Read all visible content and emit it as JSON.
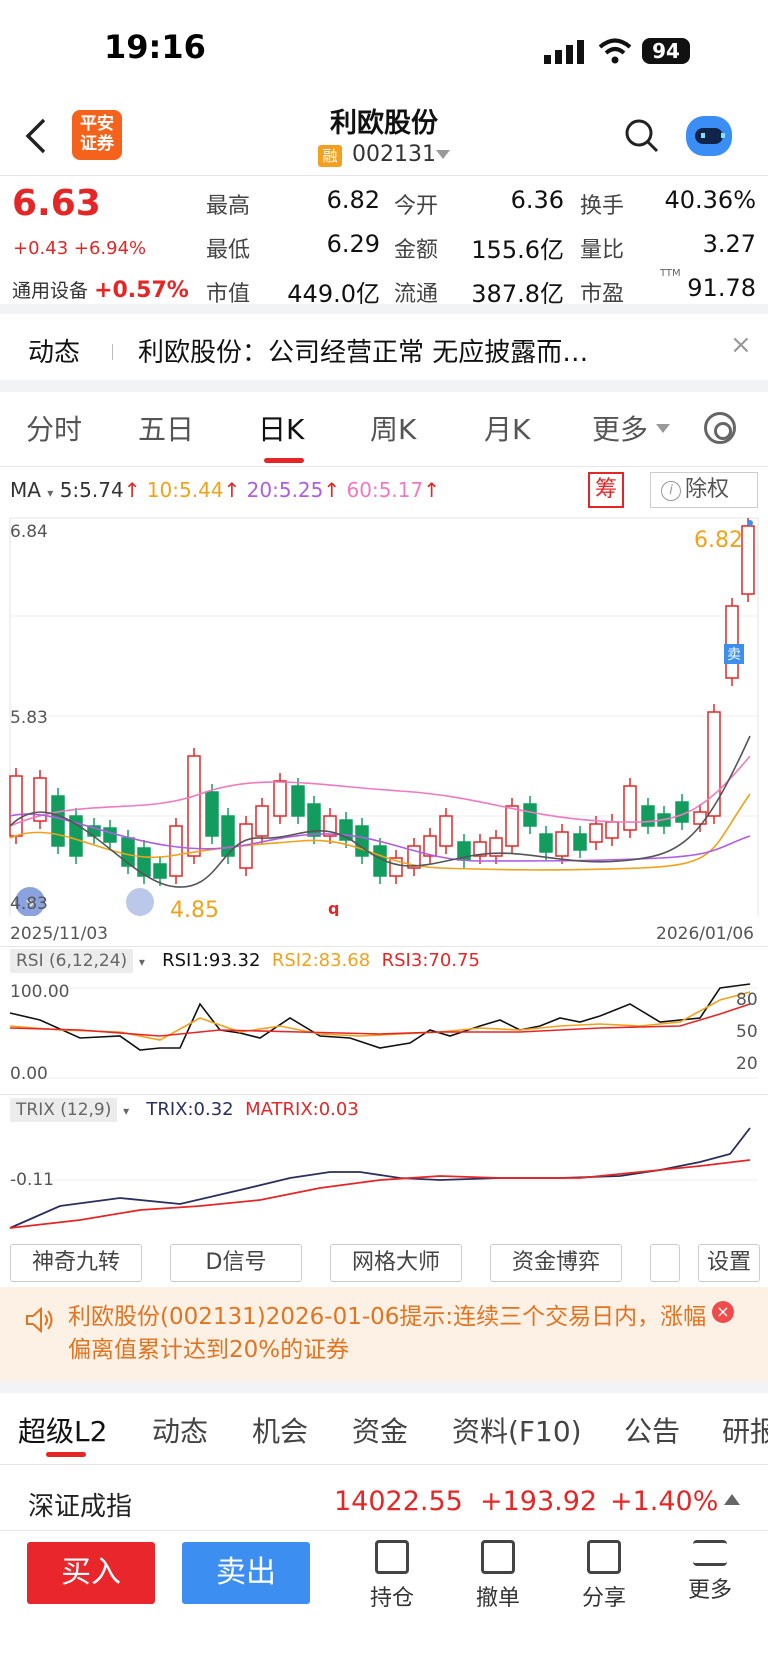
{
  "status": {
    "time": "19:16",
    "battery": "94"
  },
  "header": {
    "logo_text": "平安证券",
    "title": "利欧股份",
    "rong_badge": "融",
    "code": "002131"
  },
  "quote": {
    "price": "6.63",
    "change": "+0.43 +6.94%",
    "sector_label": "通用设备",
    "sector_change": "+0.57%",
    "fields": [
      {
        "label": "最高",
        "value": "6.82",
        "color": "red"
      },
      {
        "label": "今开",
        "value": "6.36",
        "color": "red"
      },
      {
        "label": "换手",
        "value": "40.36%",
        "color": "black"
      },
      {
        "label": "最低",
        "value": "6.29",
        "color": "red"
      },
      {
        "label": "金额",
        "value": "155.6亿",
        "color": "black"
      },
      {
        "label": "量比",
        "value": "3.27",
        "color": "black"
      },
      {
        "label": "市值",
        "value": "449.0亿",
        "color": "black"
      },
      {
        "label": "流通",
        "value": "387.8亿",
        "color": "black"
      },
      {
        "label": "市盈",
        "value": "91.78",
        "color": "black"
      }
    ],
    "ttm": "TTM"
  },
  "news": {
    "label": "动态",
    "text": "利欧股份：公司经营正常 无应披露而…"
  },
  "chart_tabs": [
    "分时",
    "五日",
    "日K",
    "周K",
    "月K",
    "更多"
  ],
  "active_chart_tab": "日K",
  "ma": {
    "label": "MA",
    "ma5": "5:5.74",
    "ma10": "10:5.44",
    "ma20": "20:5.25",
    "ma60": "60:5.17",
    "colors": {
      "ma5": "#333333",
      "ma10": "#f0a21a",
      "ma20": "#b05ee0",
      "ma60": "#f07ac0"
    },
    "chou": "筹",
    "chuquan": "除权"
  },
  "kline": {
    "y_max_label": "6.84",
    "y_mid_label": "5.83",
    "y_min_label": "4.83",
    "high_marker": "6.82",
    "low_marker": "4.85",
    "sell_badge": "卖",
    "date_start": "2025/11/03",
    "date_end": "2026/01/06"
  },
  "rsi": {
    "label": "RSI (6,12,24)",
    "rsi1": "RSI1:93.32",
    "rsi2": "RSI2:83.68",
    "rsi3": "RSI3:70.75",
    "y_top": "100.00",
    "y_bottom": "0.00",
    "levels": [
      "80",
      "50",
      "20"
    ]
  },
  "trix": {
    "label": "TRIX (12,9)",
    "trix": "TRIX:0.32",
    "matrix": "MATRIX:0.03",
    "y_label": "-0.11"
  },
  "tool_buttons": [
    "神奇九转",
    "D信号",
    "网格大师",
    "资金博弈",
    "",
    "设置"
  ],
  "alert": {
    "text": "利欧股份(002131)2026-01-06提示:连续三个交易日内，涨幅偏离值累计达到20%的证券"
  },
  "bottom_tabs": [
    "超级L2",
    "动态",
    "机会",
    "资金",
    "资料(F10)",
    "公告",
    "研报"
  ],
  "index": {
    "name": "深证成指",
    "value": "14022.55",
    "change": "+193.92",
    "pct": "+1.40%"
  },
  "actions": {
    "buy": "买入",
    "sell": "卖出",
    "tools": [
      "持仓",
      "撤单",
      "分享",
      "更多"
    ]
  }
}
